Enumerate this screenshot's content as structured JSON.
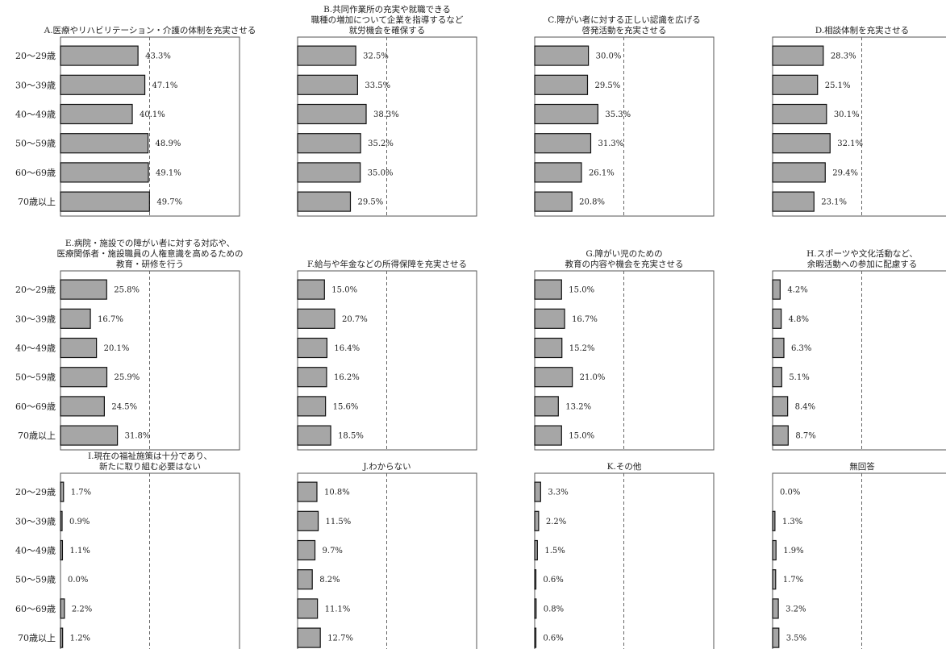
{
  "chart_data": {
    "type": "bar",
    "orientation": "horizontal",
    "grid": false,
    "reference_line": "dashed vertical line at 50%",
    "bar_color": "#a6a6a6",
    "categories": [
      "20～29歳",
      "30～39歳",
      "40～49歳",
      "50～59歳",
      "60～69歳",
      "70歳以上"
    ],
    "xlim": [
      0,
      100
    ],
    "panels": [
      {
        "title": [
          "A.医療やリハビリテーション・介護の体制を充実させる"
        ],
        "values": [
          43.3,
          47.1,
          40.1,
          48.9,
          49.1,
          49.7
        ],
        "labels": [
          "43.3%",
          "47.1%",
          "40.1%",
          "48.9%",
          "49.1%",
          "49.7%"
        ]
      },
      {
        "title": [
          "B.共同作業所の充実や就職できる",
          "職種の増加について企業を指導するなど",
          "就労機会を確保する"
        ],
        "values": [
          32.5,
          33.5,
          38.3,
          35.2,
          35.0,
          29.5
        ],
        "labels": [
          "32.5%",
          "33.5%",
          "38.3%",
          "35.2%",
          "35.0%",
          "29.5%"
        ]
      },
      {
        "title": [
          "C.障がい者に対する正しい認識を広げる",
          "啓発活動を充実させる"
        ],
        "values": [
          30.0,
          29.5,
          35.3,
          31.3,
          26.1,
          20.8
        ],
        "labels": [
          "30.0%",
          "29.5%",
          "35.3%",
          "31.3%",
          "26.1%",
          "20.8%"
        ]
      },
      {
        "title": [
          "D.相談体制を充実させる"
        ],
        "values": [
          28.3,
          25.1,
          30.1,
          32.1,
          29.4,
          23.1
        ],
        "labels": [
          "28.3%",
          "25.1%",
          "30.1%",
          "32.1%",
          "29.4%",
          "23.1%"
        ]
      },
      {
        "title": [
          "E.病院・施設での障がい者に対する対応や、",
          "医療関係者・施設職員の人権意識を高めるための",
          "教育・研修を行う"
        ],
        "values": [
          25.8,
          16.7,
          20.1,
          25.9,
          24.5,
          31.8
        ],
        "labels": [
          "25.8%",
          "16.7%",
          "20.1%",
          "25.9%",
          "24.5%",
          "31.8%"
        ]
      },
      {
        "title": [
          "F.給与や年金などの所得保障を充実させる"
        ],
        "values": [
          15.0,
          20.7,
          16.4,
          16.2,
          15.6,
          18.5
        ],
        "labels": [
          "15.0%",
          "20.7%",
          "16.4%",
          "16.2%",
          "15.6%",
          "18.5%"
        ]
      },
      {
        "title": [
          "G.障がい児のための",
          "教育の内容や機会を充実させる"
        ],
        "values": [
          15.0,
          16.7,
          15.2,
          21.0,
          13.2,
          15.0
        ],
        "labels": [
          "15.0%",
          "16.7%",
          "15.2%",
          "21.0%",
          "13.2%",
          "15.0%"
        ]
      },
      {
        "title": [
          "H.スポーツや文化活動など、",
          "余暇活動への参加に配慮する"
        ],
        "values": [
          4.2,
          4.8,
          6.3,
          5.1,
          8.4,
          8.7
        ],
        "labels": [
          "4.2%",
          "4.8%",
          "6.3%",
          "5.1%",
          "8.4%",
          "8.7%"
        ]
      },
      {
        "title": [
          "I.現在の福祉施策は十分であり、",
          "新たに取り組む必要はない"
        ],
        "values": [
          1.7,
          0.9,
          1.1,
          0.0,
          2.2,
          1.2
        ],
        "labels": [
          "1.7%",
          "0.9%",
          "1.1%",
          "0.0%",
          "2.2%",
          "1.2%"
        ]
      },
      {
        "title": [
          "J.わからない"
        ],
        "values": [
          10.8,
          11.5,
          9.7,
          8.2,
          11.1,
          12.7
        ],
        "labels": [
          "10.8%",
          "11.5%",
          "9.7%",
          "8.2%",
          "11.1%",
          "12.7%"
        ]
      },
      {
        "title": [
          "K.その他"
        ],
        "values": [
          3.3,
          2.2,
          1.5,
          0.6,
          0.8,
          0.6
        ],
        "labels": [
          "3.3%",
          "2.2%",
          "1.5%",
          "0.6%",
          "0.8%",
          "0.6%"
        ]
      },
      {
        "title": [
          "無回答"
        ],
        "values": [
          0.0,
          1.3,
          1.9,
          1.7,
          3.2,
          3.5
        ],
        "labels": [
          "0.0%",
          "1.3%",
          "1.9%",
          "1.7%",
          "3.2%",
          "3.5%"
        ]
      }
    ]
  }
}
